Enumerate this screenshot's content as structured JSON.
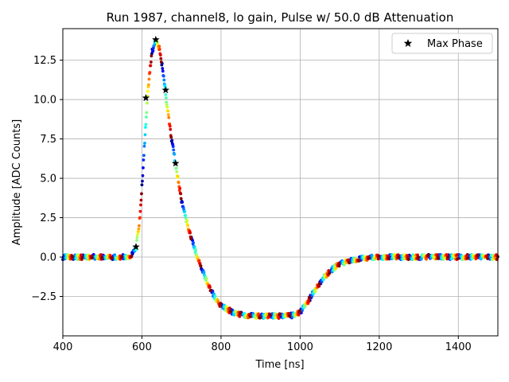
{
  "chart_data": {
    "type": "scatter",
    "title": "Run 1987, channel8, lo gain, Pulse w/ 50.0 dB Attenuation",
    "xlabel": "Time [ns]",
    "ylabel": "Amplitude [ADC Counts]",
    "xlim": [
      400,
      1500
    ],
    "ylim": [
      -5.0,
      14.5
    ],
    "xticks": [
      400,
      600,
      800,
      1000,
      1200,
      1400
    ],
    "yticks": [
      -2.5,
      0.0,
      2.5,
      5.0,
      7.5,
      10.0,
      12.5
    ],
    "xtick_labels": [
      "400",
      "600",
      "800",
      "1000",
      "1200",
      "1400"
    ],
    "ytick_labels": [
      "−2.5",
      "0.0",
      "2.5",
      "5.0",
      "7.5",
      "10.0",
      "12.5"
    ],
    "grid": true,
    "legend_position": "top-right",
    "colormap": "jet",
    "pulse_waveform": {
      "x": [
        400,
        560,
        575,
        585,
        595,
        605,
        615,
        625,
        635,
        645,
        655,
        665,
        675,
        685,
        700,
        720,
        740,
        760,
        780,
        800,
        830,
        860,
        900,
        940,
        980,
        1000,
        1020,
        1040,
        1060,
        1080,
        1100,
        1120,
        1150,
        1180,
        1220,
        1300,
        1400,
        1500
      ],
      "y": [
        0.0,
        0.0,
        0.15,
        0.6,
        2.5,
        6.5,
        10.5,
        13.0,
        13.8,
        13.2,
        11.5,
        9.3,
        7.5,
        5.9,
        3.6,
        1.6,
        0.0,
        -1.3,
        -2.4,
        -3.1,
        -3.5,
        -3.7,
        -3.75,
        -3.75,
        -3.7,
        -3.5,
        -2.8,
        -2.0,
        -1.3,
        -0.8,
        -0.45,
        -0.25,
        -0.1,
        -0.03,
        0.0,
        0.0,
        0.0,
        0.0
      ]
    },
    "series": [
      {
        "name": "Max Phase",
        "marker": "star",
        "color": "#000000",
        "x": [
          585,
          610,
          635,
          660,
          685
        ],
        "y": [
          0.65,
          10.1,
          13.8,
          10.6,
          5.95
        ]
      }
    ]
  }
}
